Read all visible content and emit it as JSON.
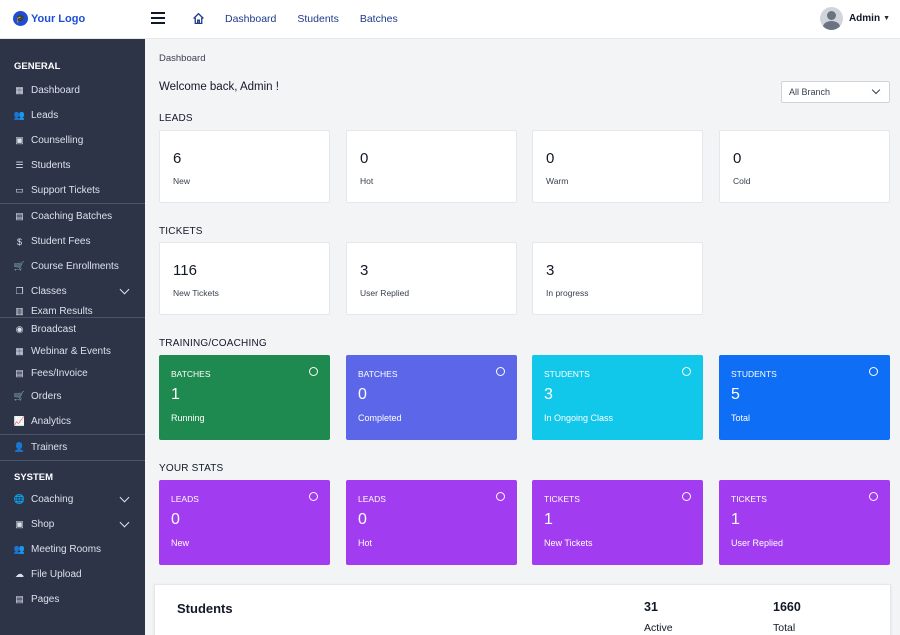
{
  "topbar": {
    "logo_text": "Your Logo",
    "nav": [
      "Dashboard",
      "Students",
      "Batches"
    ],
    "user_name": "Admin"
  },
  "sidebar": {
    "general_heading": "GENERAL",
    "general_items": [
      {
        "label": "Dashboard",
        "icon": "grid-icon"
      },
      {
        "label": "Leads",
        "icon": "users-icon"
      },
      {
        "label": "Counselling",
        "icon": "id-card-icon"
      },
      {
        "label": "Students",
        "icon": "student-icon"
      },
      {
        "label": "Support Tickets",
        "icon": "ticket-icon"
      },
      {
        "label": "Coaching Batches",
        "icon": "badge-icon"
      },
      {
        "label": "Student Fees",
        "icon": "dollar-icon"
      },
      {
        "label": "Course Enrollments",
        "icon": "cart-icon"
      },
      {
        "label": "Classes",
        "icon": "copy-icon"
      },
      {
        "label": "Exam Results",
        "icon": "doc-icon"
      },
      {
        "label": "Broadcast",
        "icon": "broadcast-icon"
      },
      {
        "label": "Webinar & Events",
        "icon": "calendar-icon"
      },
      {
        "label": "Fees/Invoice",
        "icon": "invoice-icon"
      },
      {
        "label": "Orders",
        "icon": "cart-icon"
      },
      {
        "label": "Analytics",
        "icon": "chart-icon"
      },
      {
        "label": "Trainers",
        "icon": "trainer-icon"
      }
    ],
    "system_heading": "SYSTEM",
    "system_items": [
      {
        "label": "Coaching",
        "icon": "globe-icon"
      },
      {
        "label": "Shop",
        "icon": "box-icon"
      },
      {
        "label": "Meeting Rooms",
        "icon": "meeting-icon"
      },
      {
        "label": "File Upload",
        "icon": "upload-icon"
      },
      {
        "label": "Pages",
        "icon": "pages-icon"
      }
    ]
  },
  "main": {
    "breadcrumb": "Dashboard",
    "welcome": "Welcome back, Admin !",
    "branch_select": "All Branch",
    "sections": {
      "leads": "LEADS",
      "tickets": "TICKETS",
      "training": "TRAINING/COACHING",
      "stats": "YOUR STATS"
    },
    "leads": [
      {
        "value": "6",
        "label": "New"
      },
      {
        "value": "0",
        "label": "Hot"
      },
      {
        "value": "0",
        "label": "Warm"
      },
      {
        "value": "0",
        "label": "Cold"
      }
    ],
    "tickets": [
      {
        "value": "116",
        "label": "New Tickets"
      },
      {
        "value": "3",
        "label": "User Replied"
      },
      {
        "value": "3",
        "label": "In progress"
      }
    ],
    "training": [
      {
        "top": "BATCHES",
        "value": "1",
        "label": "Running",
        "color": "#1f8a50"
      },
      {
        "top": "BATCHES",
        "value": "0",
        "label": "Completed",
        "color": "#5b67e8"
      },
      {
        "top": "STUDENTS",
        "value": "3",
        "label": "In Ongoing Class",
        "color": "#11c7ea"
      },
      {
        "top": "STUDENTS",
        "value": "5",
        "label": "Total",
        "color": "#0f6ef6"
      }
    ],
    "your_stats": [
      {
        "top": "LEADS",
        "value": "0",
        "label": "New",
        "color": "#a23cf0"
      },
      {
        "top": "LEADS",
        "value": "0",
        "label": "Hot",
        "color": "#a23cf0"
      },
      {
        "top": "TICKETS",
        "value": "1",
        "label": "New Tickets",
        "color": "#a23cf0"
      },
      {
        "top": "TICKETS",
        "value": "1",
        "label": "User Replied",
        "color": "#a23cf0"
      }
    ],
    "students_panel": {
      "title": "Students",
      "active_value": "31",
      "active_label": "Active",
      "total_value": "1660",
      "total_label": "Total"
    }
  }
}
